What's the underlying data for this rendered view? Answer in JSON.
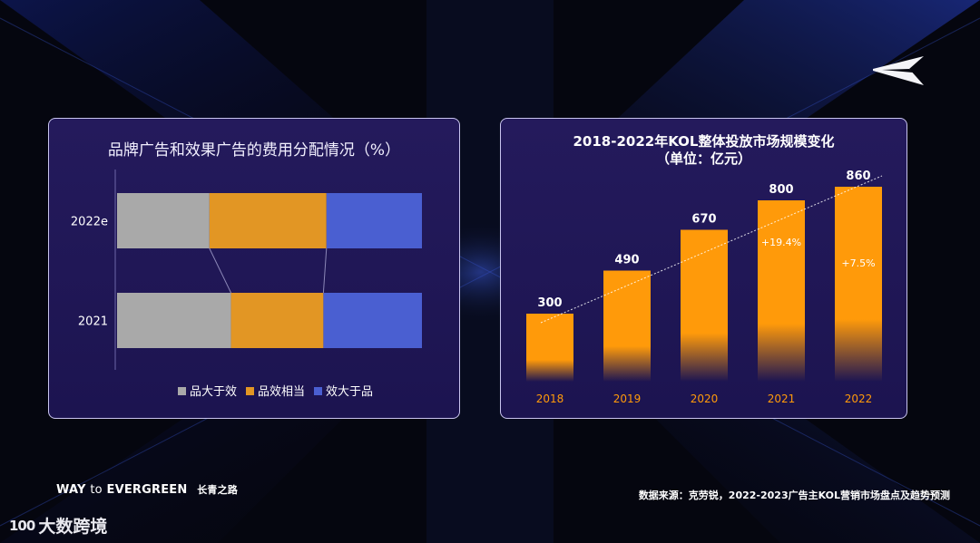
{
  "colors": {
    "gray": "#a9a9a9",
    "orange": "#e29624",
    "blue": "#4a5fd1",
    "bar_orange": "#ff9a0a"
  },
  "left_chart_title": "品牌广告和效果广告的费用分配情况（%）",
  "right_chart_title_line1": "2018-2022年KOL整体投放市场规模变化",
  "right_chart_title_line2": "（单位：亿元）",
  "footer": {
    "way": "WAY",
    "to": "to",
    "evergreen": "EVERGREEN",
    "evergreen_cn": "长青之路",
    "source": "数据来源：克劳锐，2022-2023广告主KOL营销市场盘点及趋势预测",
    "brand_mark": "100",
    "brand_name": "大数跨境"
  },
  "logo_icon": "arrow-chevron-logo-icon",
  "chart_data": [
    {
      "type": "bar",
      "orientation": "horizontal-stacked",
      "title": "品牌广告和效果广告的费用分配情况（%）",
      "categories": [
        "2022e",
        "2021"
      ],
      "series": [
        {
          "name": "品大于效",
          "values": [
            30,
            37
          ]
        },
        {
          "name": "品效相当",
          "values": [
            38,
            30
          ]
        },
        {
          "name": "效大于品",
          "values": [
            31,
            32
          ]
        }
      ],
      "legend": "bottom-center"
    },
    {
      "type": "bar",
      "title": "2018-2022年KOL整体投放市场规模变化",
      "subtitle": "（单位：亿元）",
      "categories": [
        "2018",
        "2019",
        "2020",
        "2021",
        "2022"
      ],
      "values": [
        300,
        490,
        670,
        800,
        860
      ],
      "annotations": [
        {
          "category": "2021",
          "text": "+19.4%"
        },
        {
          "category": "2022",
          "text": "+7.5%"
        }
      ],
      "trend_line": true,
      "ylim": [
        0,
        900
      ]
    }
  ]
}
